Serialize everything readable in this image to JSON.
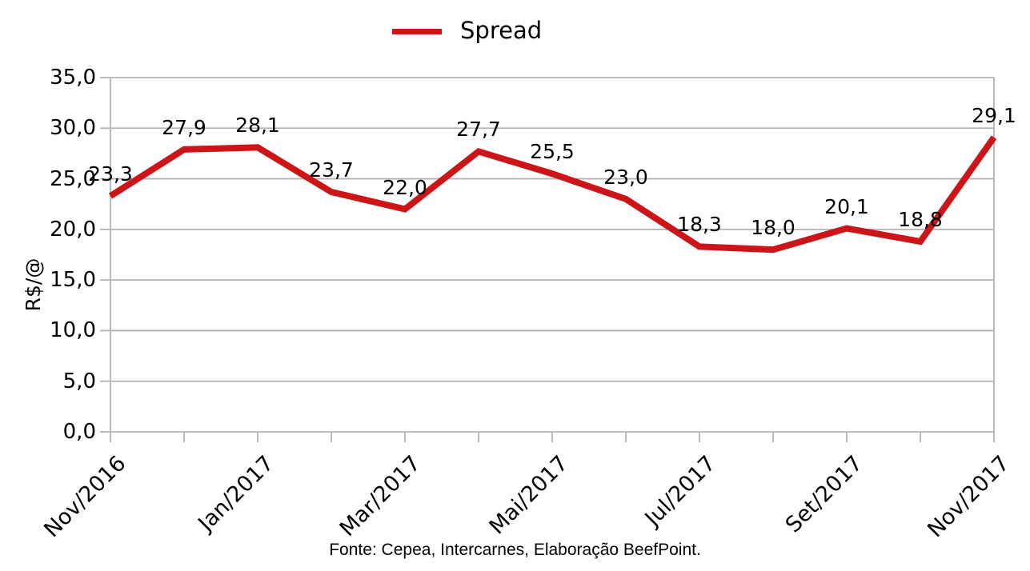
{
  "legend": {
    "label": "Spread"
  },
  "y_axis": {
    "title": "R$/@",
    "ticks": [
      "35,0",
      "30,0",
      "25,0",
      "20,0",
      "15,0",
      "10,0",
      "5,0",
      "0,0"
    ]
  },
  "x_axis": {
    "tick_labels": [
      "Nov/2016",
      "Jan/2017",
      "Mar/2017",
      "Mai/2017",
      "Jul/2017",
      "Set/2017",
      "Nov/2017"
    ]
  },
  "footer": {
    "source": "Fonte: Cepea, Intercarnes, Elaboração BeefPoint."
  },
  "colors": {
    "series": "#cc1518",
    "grid": "#b3b3b3",
    "axis": "#b3b3b3",
    "text": "#000000"
  },
  "chart_data": {
    "type": "line",
    "title": "",
    "xlabel": "",
    "ylabel": "R$/@",
    "categories": [
      "Nov/2016",
      "Dez/2016",
      "Jan/2017",
      "Fev/2017",
      "Mar/2017",
      "Abr/2017",
      "Mai/2017",
      "Jun/2017",
      "Jul/2017",
      "Ago/2017",
      "Set/2017",
      "Out/2017",
      "Nov/2017"
    ],
    "series": [
      {
        "name": "Spread",
        "values": [
          23.3,
          27.9,
          28.1,
          23.7,
          22.0,
          27.7,
          25.5,
          23.0,
          18.3,
          18.0,
          20.1,
          18.8,
          29.1
        ]
      }
    ],
    "data_labels": [
      "23,3",
      "27,9",
      "28,1",
      "23,7",
      "22,0",
      "27,7",
      "25,5",
      "23,0",
      "18,3",
      "18,0",
      "20,1",
      "18,8",
      "29,1"
    ],
    "ylim": [
      0,
      35
    ],
    "y_step": 5,
    "x_tick_label_every": 2,
    "grid": "horizontal",
    "legend_position": "top-center"
  }
}
